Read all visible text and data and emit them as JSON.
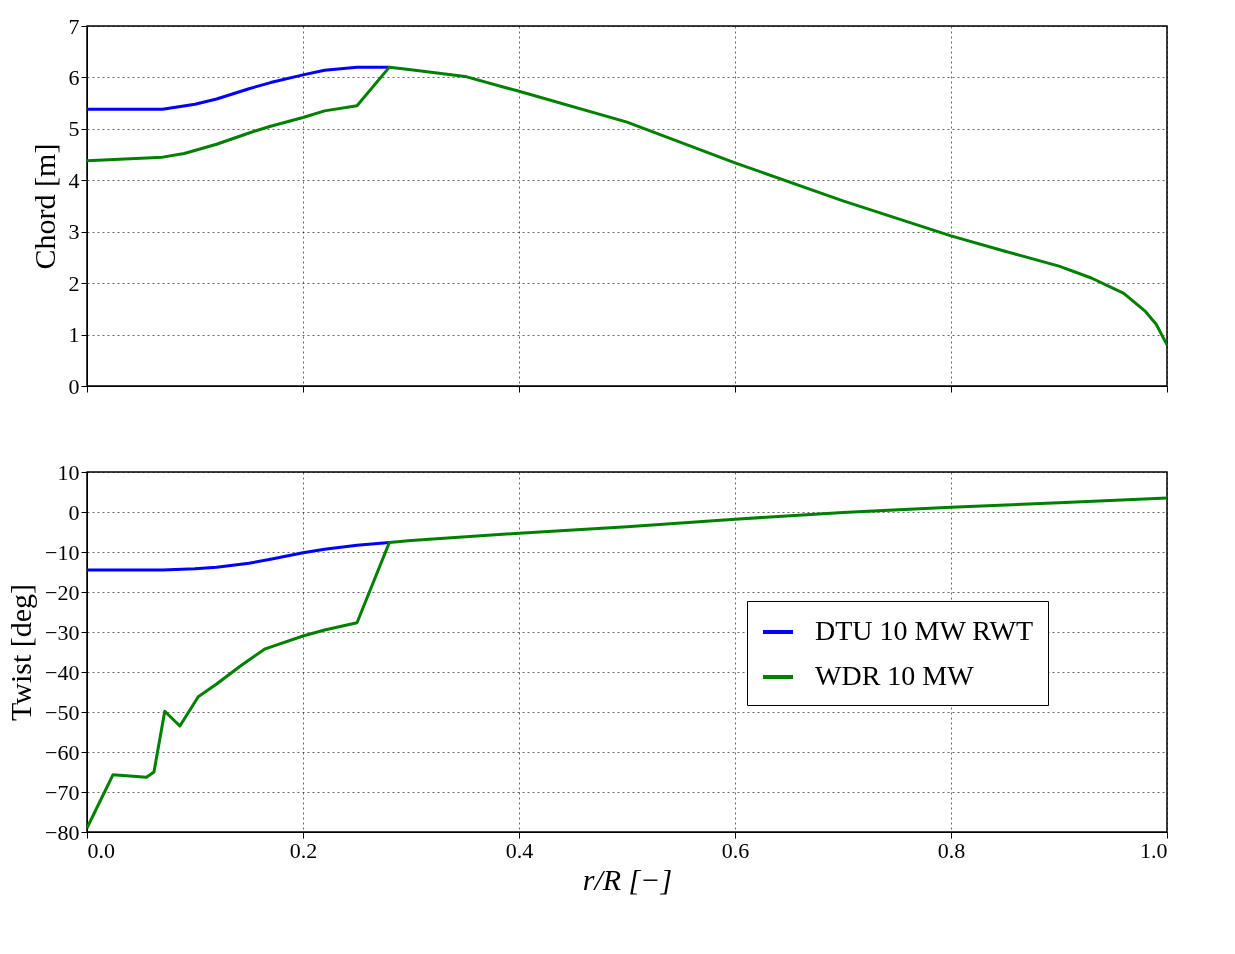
{
  "chart_data": [
    {
      "type": "line",
      "ylabel": "Chord [m]",
      "xlim": [
        0,
        1
      ],
      "xticks": [
        0,
        0.2,
        0.4,
        0.6,
        0.8,
        1
      ],
      "ylim": [
        0,
        7
      ],
      "yticks": [
        0,
        1,
        2,
        3,
        4,
        5,
        6,
        7
      ],
      "grid": true,
      "legend": false,
      "tick_labels": "y",
      "line_style": "solid",
      "marker": "none",
      "series": [
        {
          "color": "#0000ff",
          "x": [
            0,
            0.07,
            0.1,
            0.12,
            0.15,
            0.17,
            0.2,
            0.22,
            0.25,
            0.28
          ],
          "values": [
            5.38,
            5.38,
            5.48,
            5.58,
            5.78,
            5.9,
            6.05,
            6.14,
            6.2,
            6.2
          ]
        },
        {
          "color": "#008000",
          "x": [
            0,
            0.07,
            0.09,
            0.12,
            0.15,
            0.17,
            0.2,
            0.22,
            0.25,
            0.28,
            0.3,
            0.35,
            0.4,
            0.5,
            0.6,
            0.7,
            0.8,
            0.85,
            0.9,
            0.93,
            0.96,
            0.98,
            0.99,
            1.0
          ],
          "values": [
            4.38,
            4.45,
            4.52,
            4.7,
            4.92,
            5.05,
            5.22,
            5.35,
            5.45,
            6.2,
            6.15,
            6.02,
            5.73,
            5.13,
            4.34,
            3.6,
            2.92,
            2.62,
            2.33,
            2.1,
            1.8,
            1.45,
            1.2,
            0.8
          ]
        }
      ]
    },
    {
      "type": "line",
      "xlabel": "r/R [−]",
      "ylabel": "Twist [deg]",
      "xlim": [
        0,
        1
      ],
      "xticks": [
        {
          "value": 0,
          "label": "0.0"
        },
        0.2,
        0.4,
        0.6,
        0.8,
        {
          "value": 1,
          "label": "1.0"
        }
      ],
      "ylim": [
        -80,
        10
      ],
      "yticks": [
        -80,
        -70,
        -60,
        -50,
        -40,
        -30,
        -20,
        -10,
        0,
        10
      ],
      "grid": true,
      "legend": "right",
      "line_style": "solid",
      "marker": "none",
      "series": [
        {
          "name": "DTU 10 MW RWT",
          "color": "#0000ff",
          "x": [
            0,
            0.07,
            0.1,
            0.12,
            0.15,
            0.17,
            0.2,
            0.22,
            0.25,
            0.28
          ],
          "values": [
            -14.5,
            -14.5,
            -14.2,
            -13.8,
            -12.8,
            -11.8,
            -10.2,
            -9.3,
            -8.3,
            -7.6
          ]
        },
        {
          "name": "WDR 10 MW",
          "color": "#008000",
          "x": [
            0,
            0.024,
            0.055,
            0.062,
            0.072,
            0.086,
            0.103,
            0.12,
            0.143,
            0.165,
            0.2,
            0.22,
            0.25,
            0.28,
            0.3,
            0.4,
            0.5,
            0.6,
            0.7,
            0.8,
            0.9,
            1.0
          ],
          "values": [
            -79,
            -65.7,
            -66.3,
            -65,
            -49.8,
            -53.5,
            -46.2,
            -43,
            -38.3,
            -34.2,
            -31,
            -29.5,
            -27.7,
            -7.6,
            -7.1,
            -5.3,
            -3.7,
            -1.8,
            -0.1,
            1.2,
            2.3,
            3.5
          ]
        }
      ]
    }
  ]
}
